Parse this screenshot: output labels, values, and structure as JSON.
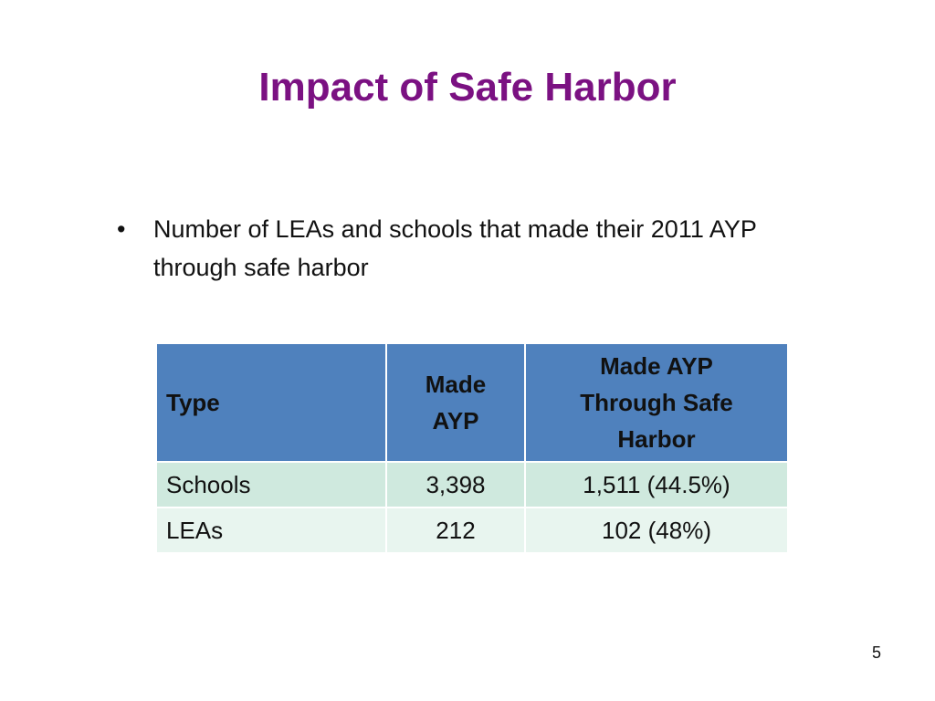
{
  "slide": {
    "title": "Impact of Safe Harbor",
    "bullets": [
      "Number of LEAs and schools that made their 2011 AYP through safe harbor"
    ],
    "page_number": "5"
  },
  "table": {
    "headers": {
      "type": "Type",
      "made_ayp_line1": "Made",
      "made_ayp_line2": "AYP",
      "safe_harbor_line1": "Made AYP",
      "safe_harbor_line2": "Through Safe",
      "safe_harbor_line3": "Harbor"
    },
    "rows": [
      {
        "type": "Schools",
        "made_ayp": "3,398",
        "safe_harbor": "1,511 (44.5%)"
      },
      {
        "type": "LEAs",
        "made_ayp": "212",
        "safe_harbor": "102 (48%)"
      }
    ]
  },
  "colors": {
    "title": "#7b1182",
    "header_fill": "#4f81bd",
    "row_odd_fill": "#cfe9de",
    "row_even_fill": "#e8f5ef"
  }
}
